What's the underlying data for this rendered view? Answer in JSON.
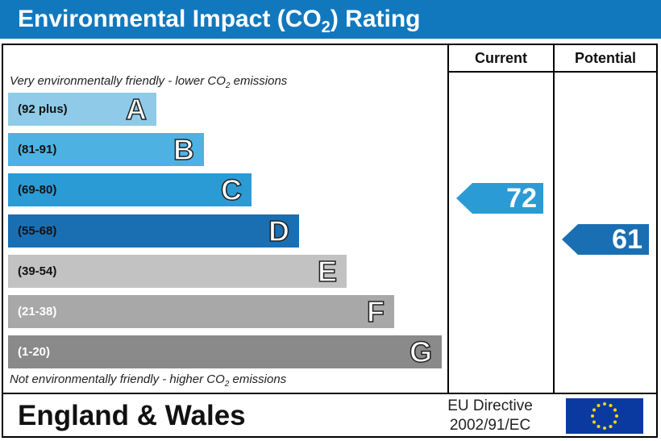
{
  "title": "Environmental Impact (CO",
  "title_sub": "2",
  "title_end": ") Rating",
  "columns": {
    "current": "Current",
    "potential": "Potential"
  },
  "top_note": {
    "before": "Very environmentally friendly - lower CO",
    "sub": "2",
    "after": " emissions"
  },
  "bottom_note": {
    "before": "Not environmentally friendly - higher CO",
    "sub": "2",
    "after": " emissions"
  },
  "chart_data": {
    "type": "bar",
    "title": "Environmental Impact (CO2) Rating",
    "bands": [
      {
        "letter": "A",
        "range": "(92 plus)",
        "min": 92,
        "max": 100,
        "color": "#8fcbe8",
        "range_color": "#111111"
      },
      {
        "letter": "B",
        "range": "(81-91)",
        "min": 81,
        "max": 91,
        "color": "#4db2e1",
        "range_color": "#111111"
      },
      {
        "letter": "C",
        "range": "(69-80)",
        "min": 69,
        "max": 80,
        "color": "#2b9bd5",
        "range_color": "#111111"
      },
      {
        "letter": "D",
        "range": "(55-68)",
        "min": 55,
        "max": 68,
        "color": "#1a6fb3",
        "range_color": "#111111"
      },
      {
        "letter": "E",
        "range": "(39-54)",
        "min": 39,
        "max": 54,
        "color": "#c2c2c2",
        "range_color": "#111111"
      },
      {
        "letter": "F",
        "range": "(21-38)",
        "min": 21,
        "max": 38,
        "color": "#a8a8a8",
        "range_color": "#ffffff"
      },
      {
        "letter": "G",
        "range": "(1-20)",
        "min": 1,
        "max": 20,
        "color": "#8a8a8a",
        "range_color": "#ffffff"
      }
    ],
    "current": {
      "value": 72,
      "band": "C",
      "color": "#2b9bd5"
    },
    "potential": {
      "value": 61,
      "band": "D",
      "color": "#1a6fb3"
    }
  },
  "footer": {
    "region": "England & Wales",
    "directive_line1": "EU Directive",
    "directive_line2": "2002/91/EC",
    "flag_icon": "eu-flag-icon",
    "flag_color": "#0a3aa0",
    "star_color": "#ffd800"
  }
}
